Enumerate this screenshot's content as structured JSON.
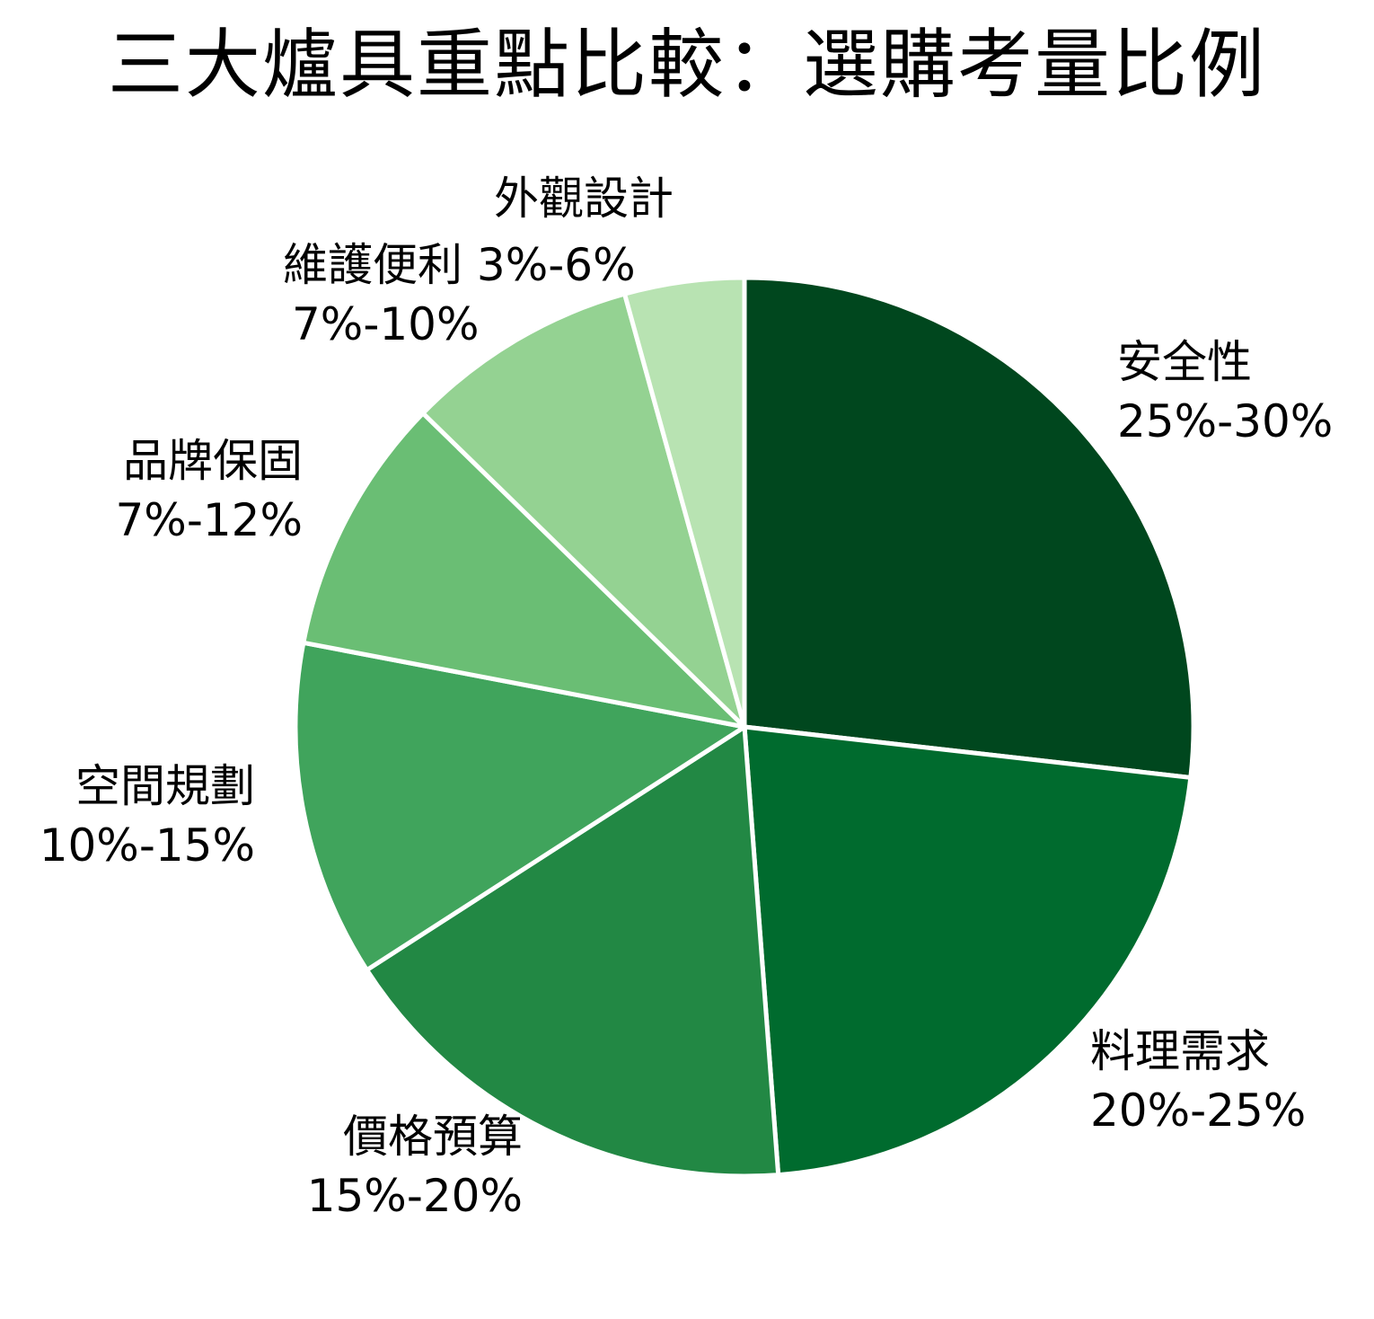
{
  "chart_data": {
    "type": "pie",
    "title": "三大爐具重點比較：選購考量比例",
    "start_angle_deg": 0,
    "direction": "clockwise",
    "center": [
      829,
      809
    ],
    "radius": 500,
    "slices": [
      {
        "name": "安全性",
        "range": "25%-30%",
        "value": 26.8,
        "color": "#00471e"
      },
      {
        "name": "料理需求",
        "range": "20%-25%",
        "value": 22.0,
        "color": "#006b2e"
      },
      {
        "name": "價格預算",
        "range": "15%-20%",
        "value": 17.1,
        "color": "#228844"
      },
      {
        "name": "空間規劃",
        "range": "10%-15%",
        "value": 12.1,
        "color": "#40a45c"
      },
      {
        "name": "品牌保固",
        "range": "7%-12%",
        "value": 9.3,
        "color": "#6abe74"
      },
      {
        "name": "維護便利",
        "range": "7%-10%",
        "value": 8.4,
        "color": "#94d292"
      },
      {
        "name": "外觀設計",
        "range": "3%-6%",
        "value": 4.3,
        "color": "#b8e3b2"
      }
    ]
  },
  "labels": {
    "safety": {
      "name": "安全性",
      "pct": "25%-30%"
    },
    "cooking": {
      "name": "料理需求",
      "pct": "20%-25%"
    },
    "price": {
      "name": "價格預算",
      "pct": "15%-20%"
    },
    "space": {
      "name": "空間規劃",
      "pct": "10%-15%"
    },
    "brand": {
      "name": "品牌保固",
      "pct": "7%-12%"
    },
    "maintenance": {
      "name": "維護便利",
      "pct": "7%-10%"
    },
    "appearance": {
      "name": "外觀設計",
      "pct": "3%-6%"
    }
  }
}
